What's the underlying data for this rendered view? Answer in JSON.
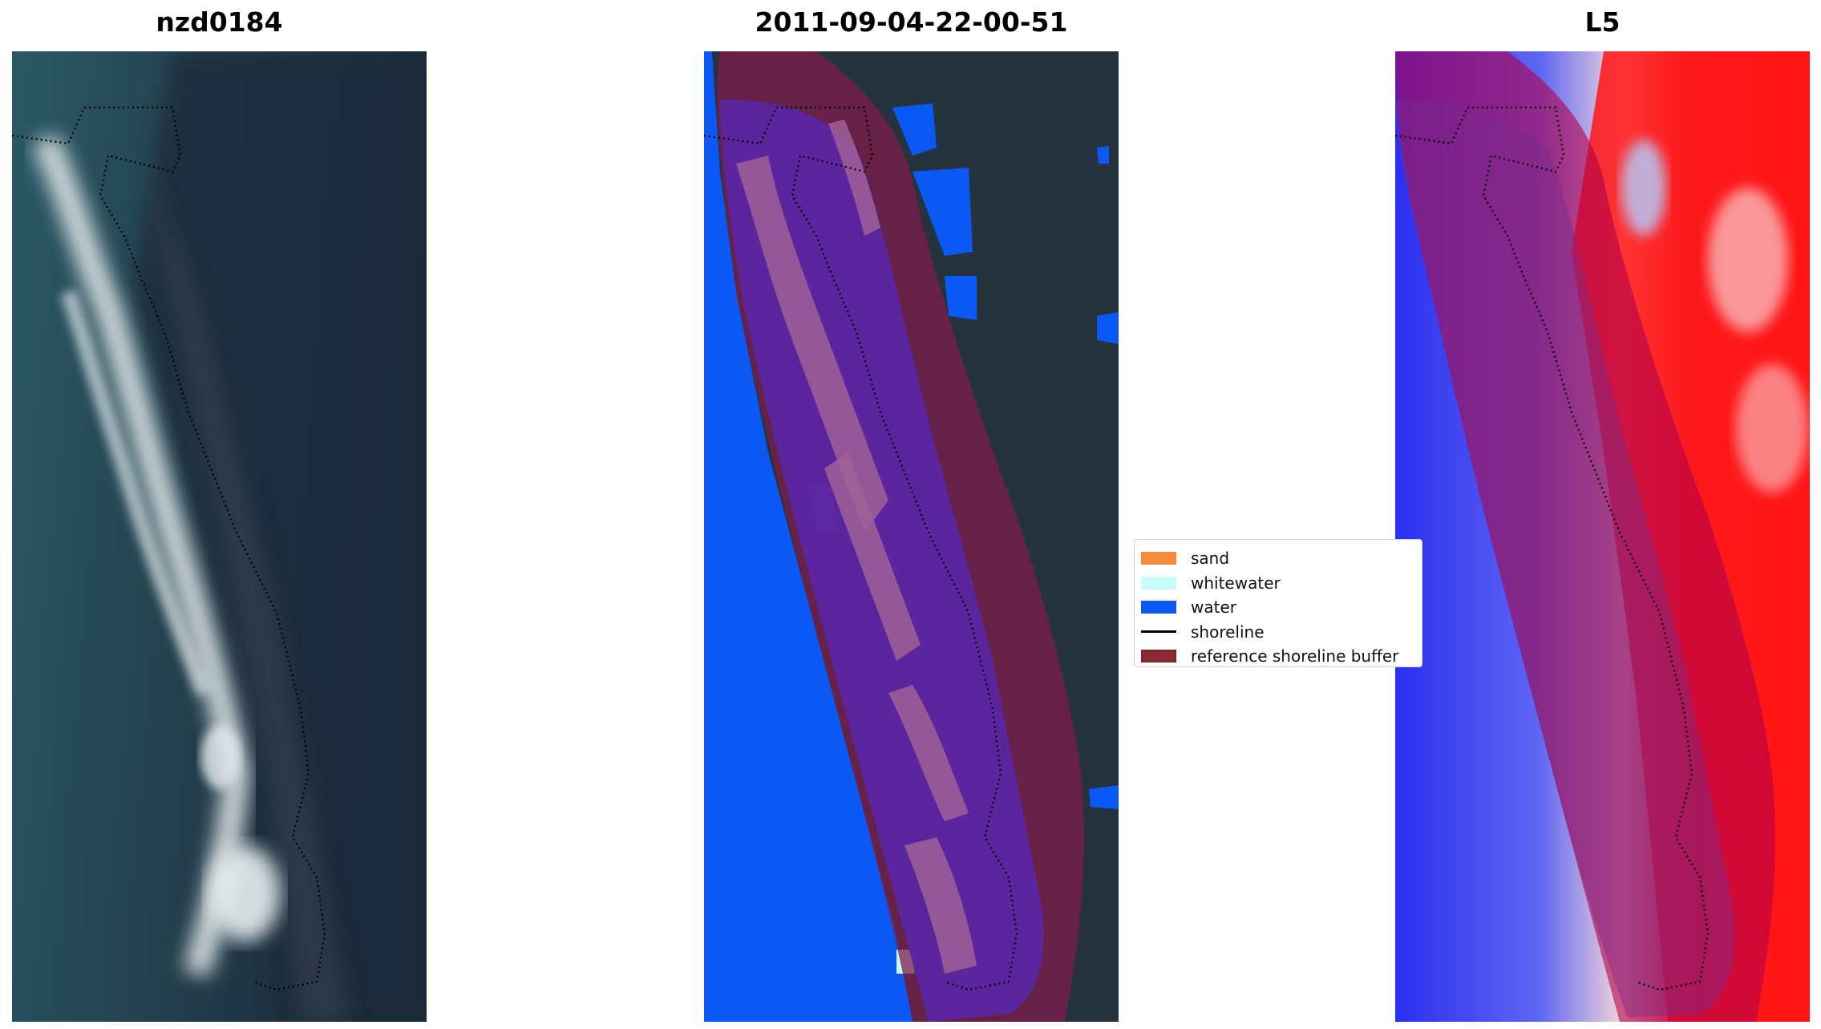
{
  "panels": [
    {
      "title": "nzd0184"
    },
    {
      "title": "2011-09-04-22-00-51"
    },
    {
      "title": "L5"
    }
  ],
  "legend": {
    "items": [
      {
        "label": "sand",
        "color": "#f58a3b",
        "kind": "patch"
      },
      {
        "label": "whitewater",
        "color": "#c9fbfb",
        "kind": "patch"
      },
      {
        "label": "water",
        "color": "#0a59f5",
        "kind": "patch"
      },
      {
        "label": "shoreline",
        "color": "#000000",
        "kind": "line"
      },
      {
        "label": "reference shoreline buffer",
        "color": "#8b2a36",
        "kind": "patch"
      }
    ]
  }
}
